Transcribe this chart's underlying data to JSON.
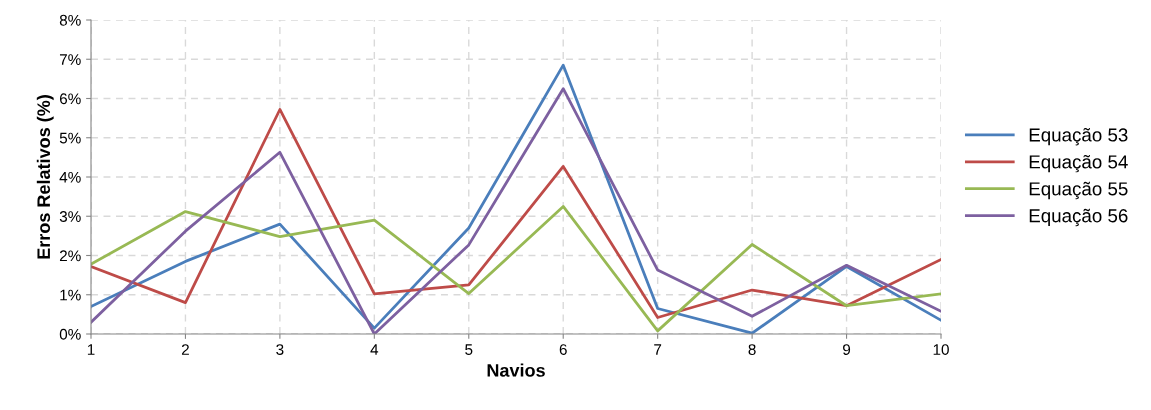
{
  "chart_data": {
    "type": "line",
    "xlabel": "Navios",
    "ylabel": "Erros Relativos (%)",
    "x": [
      1,
      2,
      3,
      4,
      5,
      6,
      7,
      8,
      9,
      10
    ],
    "xlim": [
      1,
      10
    ],
    "xticks": [
      1,
      2,
      3,
      4,
      5,
      6,
      7,
      8,
      9,
      10
    ],
    "ylim": [
      0,
      8
    ],
    "yticks": [
      {
        "value": 0,
        "label": "0%"
      },
      {
        "value": 1,
        "label": "1%"
      },
      {
        "value": 2,
        "label": "2%"
      },
      {
        "value": 3,
        "label": "3%"
      },
      {
        "value": 4,
        "label": "4%"
      },
      {
        "value": 5,
        "label": "5%"
      },
      {
        "value": 6,
        "label": "6%"
      },
      {
        "value": 7,
        "label": "7%"
      },
      {
        "value": 8,
        "label": "8%"
      }
    ],
    "grid": true,
    "legend": "right",
    "marker": "none",
    "line_style": "solid",
    "series": [
      {
        "name": "Equação 53",
        "color": "#4a7ebb",
        "values": [
          0.7,
          1.85,
          2.8,
          0.15,
          2.7,
          6.85,
          0.65,
          0.02,
          1.72,
          0.35
        ]
      },
      {
        "name": "Equação 54",
        "color": "#be4b48",
        "values": [
          1.72,
          0.8,
          5.72,
          1.02,
          1.25,
          4.27,
          0.42,
          1.12,
          0.72,
          1.9
        ]
      },
      {
        "name": "Equação 55",
        "color": "#98b954",
        "values": [
          1.78,
          3.12,
          2.48,
          2.9,
          1.03,
          3.25,
          0.08,
          2.28,
          0.72,
          1.02
        ]
      },
      {
        "name": "Equação 56",
        "color": "#7d60a0",
        "values": [
          0.3,
          2.62,
          4.63,
          0.0,
          2.27,
          6.25,
          1.63,
          0.45,
          1.75,
          0.58
        ]
      }
    ]
  }
}
